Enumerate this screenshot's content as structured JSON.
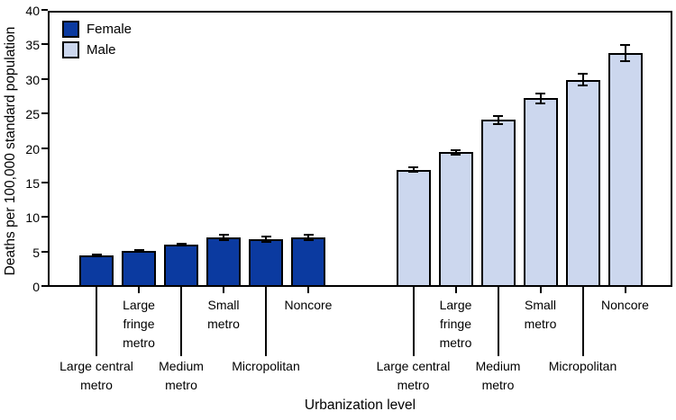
{
  "chart_data": {
    "type": "bar",
    "title": "",
    "xlabel": "Urbanization level",
    "ylabel": "Deaths per 100,000 standard population",
    "ylim": [
      0,
      40
    ],
    "yticks": [
      0,
      5,
      10,
      15,
      20,
      25,
      30,
      35,
      40
    ],
    "grid": false,
    "legend_position": "top-left",
    "error_bars": true,
    "categories": [
      "Large central metro",
      "Large fringe metro",
      "Medium metro",
      "Small metro",
      "Micropolitan",
      "Noncore"
    ],
    "category_label_layout": [
      {
        "lines": [
          "Large central",
          "metro"
        ],
        "row": "lower"
      },
      {
        "lines": [
          "Large",
          "fringe",
          "metro"
        ],
        "row": "upper"
      },
      {
        "lines": [
          "Medium",
          "metro"
        ],
        "row": "lower"
      },
      {
        "lines": [
          "Small",
          "metro"
        ],
        "row": "upper"
      },
      {
        "lines": [
          "Micropolitan"
        ],
        "row": "lower"
      },
      {
        "lines": [
          "Noncore"
        ],
        "row": "upper"
      }
    ],
    "series": [
      {
        "name": "Female",
        "color": "#0b3aa0",
        "values": [
          4.6,
          5.2,
          6.1,
          7.2,
          6.9,
          7.2
        ],
        "errors": [
          0.25,
          0.25,
          0.3,
          0.5,
          0.5,
          0.55
        ]
      },
      {
        "name": "Male",
        "color": "#ccd7ee",
        "values": [
          17.0,
          19.5,
          24.2,
          27.3,
          30.0,
          33.9
        ],
        "errors": [
          0.5,
          0.5,
          0.7,
          0.9,
          1.0,
          1.3
        ]
      }
    ],
    "axis_color": "#000000"
  }
}
